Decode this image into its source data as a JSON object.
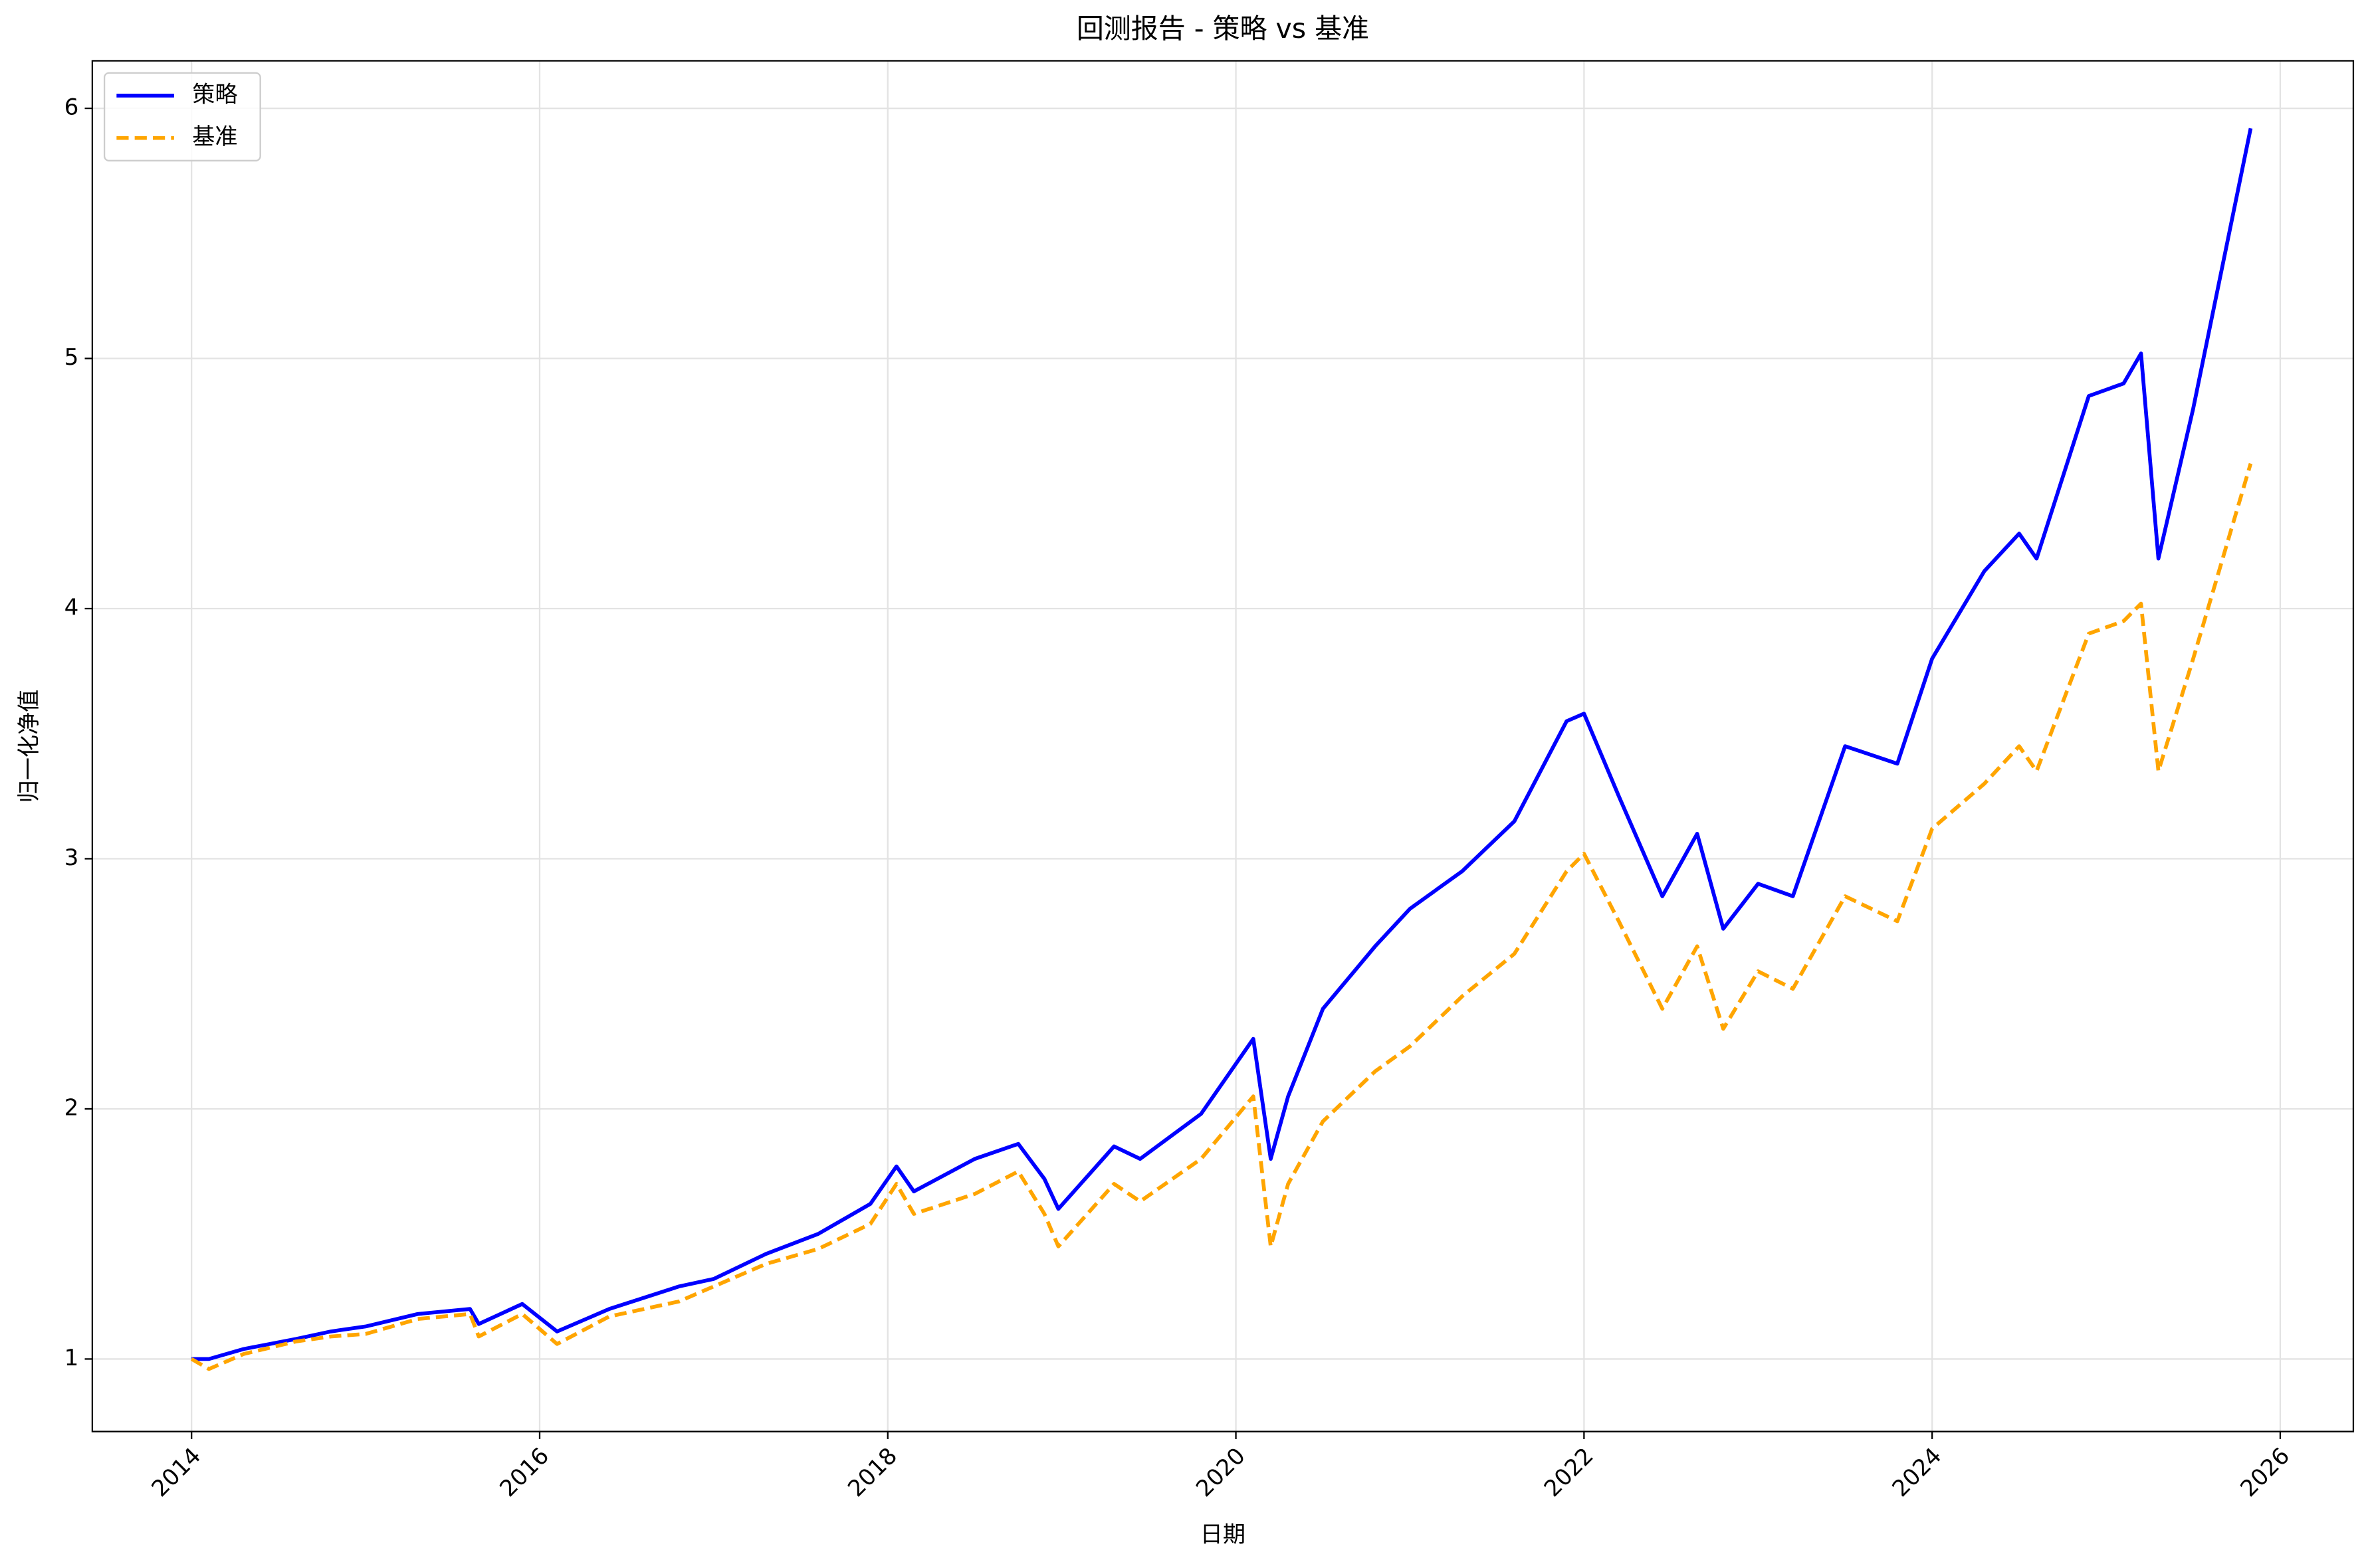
{
  "chart_data": {
    "type": "line",
    "title": "回测报告 - 策略 vs 基准",
    "x_label": "日期",
    "y_label": "归一化净值",
    "x": [
      2014.0,
      2014.1,
      2014.3,
      2014.6,
      2014.8,
      2015.0,
      2015.3,
      2015.6,
      2015.65,
      2015.9,
      2016.1,
      2016.4,
      2016.8,
      2017.0,
      2017.3,
      2017.6,
      2017.9,
      2018.05,
      2018.15,
      2018.5,
      2018.75,
      2018.9,
      2018.98,
      2019.3,
      2019.45,
      2019.8,
      2020.1,
      2020.2,
      2020.3,
      2020.5,
      2020.8,
      2021.0,
      2021.3,
      2021.6,
      2021.9,
      2022.0,
      2022.2,
      2022.45,
      2022.65,
      2022.8,
      2023.0,
      2023.2,
      2023.5,
      2023.8,
      2024.0,
      2024.3,
      2024.5,
      2024.6,
      2024.9,
      2025.1,
      2025.2,
      2025.3,
      2025.5,
      2025.83
    ],
    "series": [
      {
        "name": "策略",
        "color": "#0000ff",
        "dashed": false,
        "values": [
          1.0,
          1.0,
          1.04,
          1.08,
          1.11,
          1.13,
          1.18,
          1.2,
          1.14,
          1.22,
          1.11,
          1.2,
          1.29,
          1.32,
          1.42,
          1.5,
          1.62,
          1.77,
          1.67,
          1.8,
          1.86,
          1.72,
          1.6,
          1.85,
          1.8,
          1.98,
          2.28,
          1.8,
          2.05,
          2.4,
          2.65,
          2.8,
          2.95,
          3.15,
          3.55,
          3.58,
          3.25,
          2.85,
          3.1,
          2.72,
          2.9,
          2.85,
          3.45,
          3.38,
          3.8,
          4.15,
          4.3,
          4.2,
          4.85,
          4.9,
          5.02,
          4.2,
          4.8,
          5.92
        ]
      },
      {
        "name": "基准",
        "color": "#ffa500",
        "dashed": true,
        "values": [
          1.0,
          0.96,
          1.02,
          1.07,
          1.09,
          1.1,
          1.16,
          1.18,
          1.09,
          1.18,
          1.06,
          1.17,
          1.23,
          1.29,
          1.38,
          1.44,
          1.54,
          1.7,
          1.58,
          1.66,
          1.75,
          1.58,
          1.45,
          1.7,
          1.63,
          1.8,
          2.05,
          1.45,
          1.7,
          1.95,
          2.15,
          2.25,
          2.45,
          2.62,
          2.95,
          3.02,
          2.75,
          2.4,
          2.65,
          2.32,
          2.55,
          2.48,
          2.85,
          2.75,
          3.12,
          3.3,
          3.45,
          3.35,
          3.9,
          3.95,
          4.02,
          3.35,
          3.8,
          4.58
        ]
      }
    ],
    "xlim": [
      2013.43,
      2026.42
    ],
    "xticks": [
      2014,
      2016,
      2018,
      2020,
      2022,
      2024,
      2026
    ],
    "ylim": [
      0.71,
      6.19
    ],
    "yticks": [
      1,
      2,
      3,
      4,
      5,
      6
    ],
    "grid": true,
    "legend": "upper left"
  }
}
